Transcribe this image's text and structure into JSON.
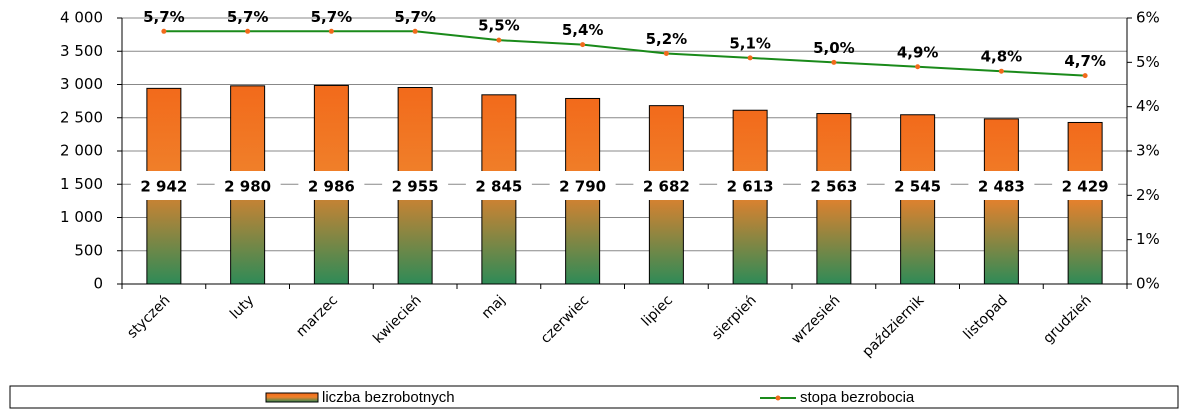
{
  "chart_data": {
    "type": "bar",
    "categories": [
      "styczeń",
      "luty",
      "marzec",
      "kwiecień",
      "maj",
      "czerwiec",
      "lipiec",
      "sierpień",
      "wrzesień",
      "październik",
      "listopad",
      "grudzień"
    ],
    "series": [
      {
        "name": "liczba bezrobotnych",
        "type": "bar",
        "color": "#f26a1b",
        "color2": "#2e8b57",
        "values": [
          2942,
          2980,
          2986,
          2955,
          2845,
          2790,
          2682,
          2613,
          2563,
          2545,
          2483,
          2429
        ],
        "value_labels": [
          "2 942",
          "2 980",
          "2 986",
          "2 955",
          "2 845",
          "2 790",
          "2 682",
          "2 613",
          "2 563",
          "2 545",
          "2 483",
          "2 429"
        ]
      },
      {
        "name": "stopa bezrobocia",
        "type": "line",
        "axis": "y2",
        "color": "#1a8a1a",
        "marker_color": "#f26a1b",
        "values": [
          5.7,
          5.7,
          5.7,
          5.7,
          5.5,
          5.4,
          5.2,
          5.1,
          5.0,
          4.9,
          4.8,
          4.7
        ],
        "value_labels": [
          "5,7%",
          "5,7%",
          "5,7%",
          "5,7%",
          "5,5%",
          "5,4%",
          "5,2%",
          "5,1%",
          "5,0%",
          "4,9%",
          "4,8%",
          "4,7%"
        ]
      }
    ],
    "ylim": [
      0,
      4000
    ],
    "yticks": [
      0,
      500,
      {
        "value": 1000,
        "label": "1 000"
      },
      {
        "value": 1500,
        "label": "1 500"
      },
      {
        "value": 2000,
        "label": "2 000"
      },
      {
        "value": 2500,
        "label": "2 500"
      },
      {
        "value": 3000,
        "label": "3 000"
      },
      {
        "value": 3500,
        "label": "3 500"
      },
      {
        "value": 4000,
        "label": "4 000"
      }
    ],
    "y2lim": [
      0,
      6
    ],
    "y2ticks": [
      {
        "value": 0,
        "label": "0%"
      },
      {
        "value": 1,
        "label": "1%"
      },
      {
        "value": 2,
        "label": "2%"
      },
      {
        "value": 3,
        "label": "3%"
      },
      {
        "value": 4,
        "label": "4%"
      },
      {
        "value": 5,
        "label": "5%"
      },
      {
        "value": 6,
        "label": "6%"
      }
    ],
    "grid": true,
    "legend": "bottom"
  }
}
